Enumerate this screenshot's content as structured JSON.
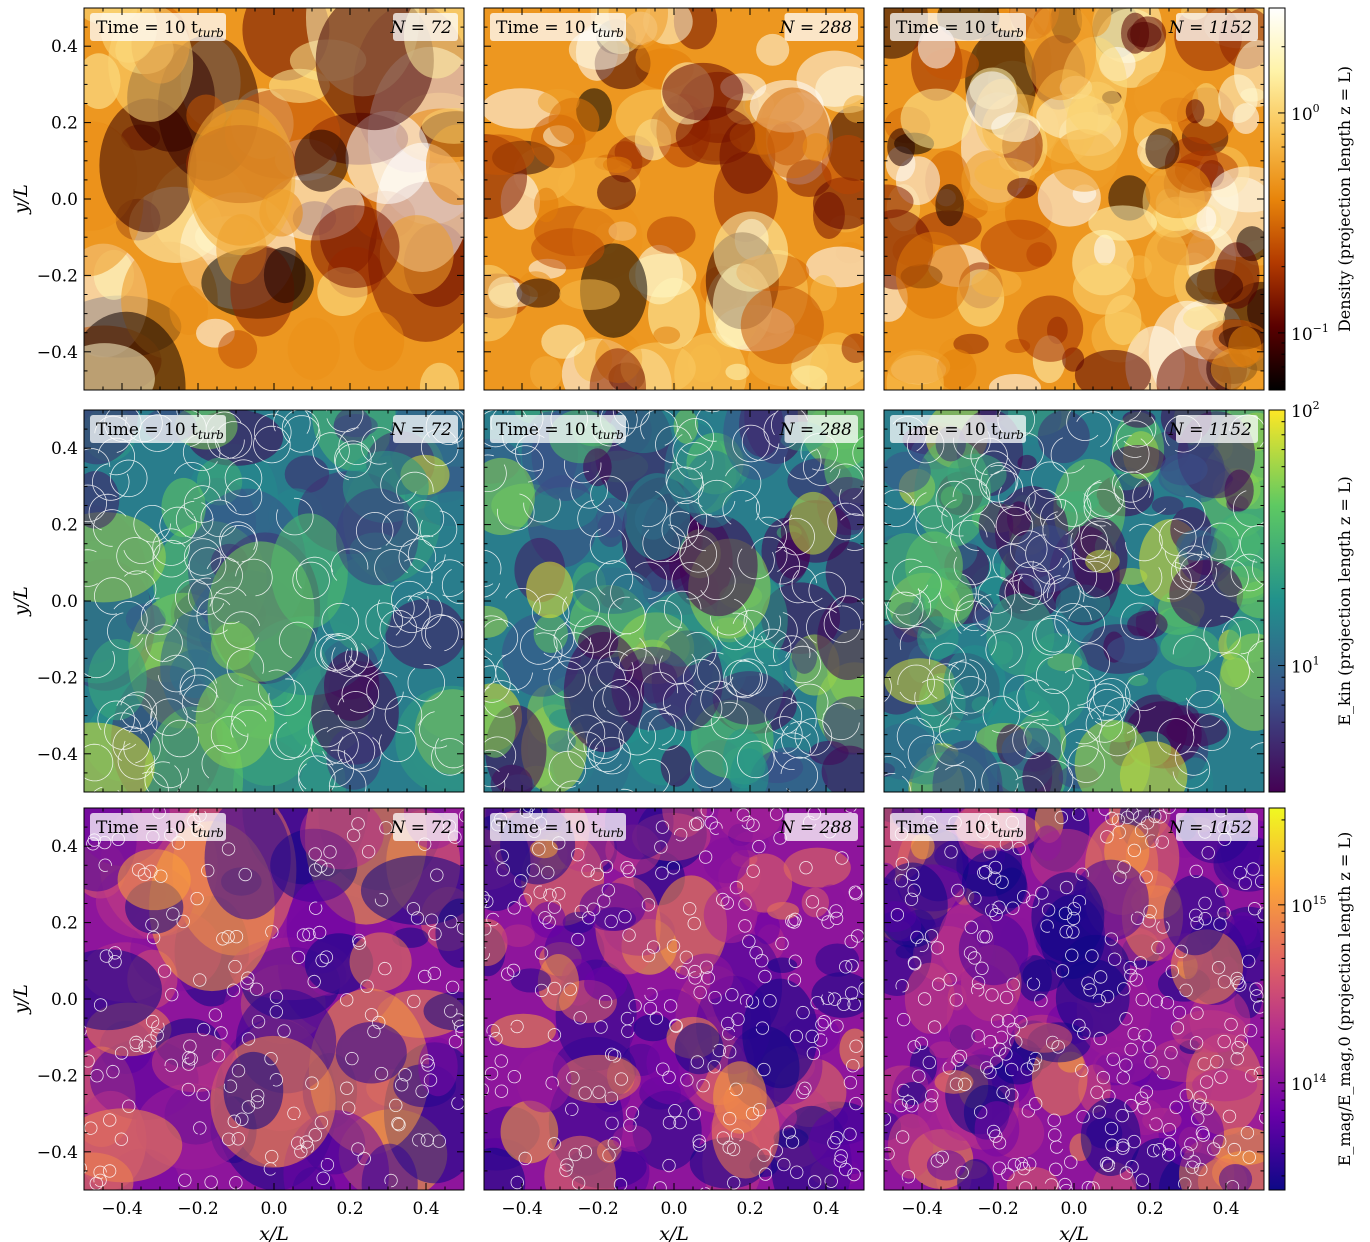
{
  "time_label": "Time = 10 t",
  "time_sub": "turb",
  "panel_titles": [
    "N = 72",
    "N = 288",
    "N = 1152"
  ],
  "xlabel": "x/L",
  "ylabel": "y/L",
  "x_ticks": [
    "−0.4",
    "−0.2",
    "0.0",
    "0.2",
    "0.4"
  ],
  "y_ticks": [
    "0.4",
    "0.2",
    "0.0",
    "−0.2",
    "−0.4"
  ],
  "rows": [
    {
      "quantity": "density",
      "colormap": "afmhot",
      "colors": [
        "#000000",
        "#5a0000",
        "#b23a00",
        "#e8850b",
        "#f8c050",
        "#fff3a8",
        "#ffffff"
      ],
      "streamlines": false,
      "colorbar_label": "Density (projection length z = L)",
      "colorbar_ticks": [
        {
          "base": "10",
          "exp": "0",
          "value": 1
        },
        {
          "base": "10",
          "exp": "−1",
          "value": 0.1
        }
      ],
      "colorbar_range": [
        0.055,
        3.0
      ]
    },
    {
      "quantity": "kinetic-energy",
      "colormap": "viridis",
      "colors": [
        "#440154",
        "#3b528b",
        "#21918c",
        "#5ec962",
        "#fde725"
      ],
      "streamlines": true,
      "colorbar_label": "E_kin (projection length z = L)",
      "colorbar_ticks": [
        {
          "base": "10",
          "exp": "2",
          "value": 100
        },
        {
          "base": "10",
          "exp": "1",
          "value": 10
        }
      ],
      "colorbar_range": [
        3.2,
        100
      ]
    },
    {
      "quantity": "magnetic-energy",
      "colormap": "plasma",
      "colors": [
        "#0d0887",
        "#6a00a8",
        "#b12a90",
        "#e16462",
        "#fca636",
        "#f0f921"
      ],
      "streamlines": true,
      "colorbar_label": "E_mag/E_mag,0 (projection length z = L)",
      "colorbar_ticks": [
        {
          "base": "10",
          "exp": "15",
          "value": 1000000000000000.0
        },
        {
          "base": "10",
          "exp": "14",
          "value": 100000000000000.0
        }
      ],
      "colorbar_range": [
        25000000000000.0,
        3500000000000000.0
      ]
    }
  ],
  "axis_range": [
    -0.5,
    0.5
  ]
}
